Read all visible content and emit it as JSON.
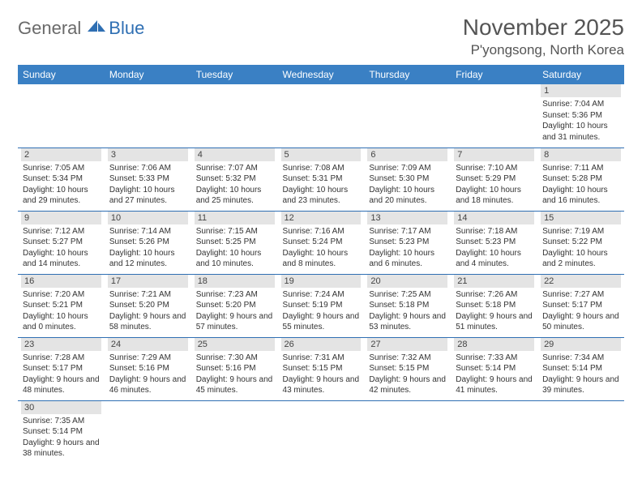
{
  "logo": {
    "general": "General",
    "blue": "Blue"
  },
  "title": "November 2025",
  "location": "P'yongsong, North Korea",
  "colors": {
    "header_bg": "#3a80c4",
    "header_text": "#ffffff",
    "row_divider": "#2f6fb3",
    "daynum_bg": "#e4e4e4",
    "logo_gray": "#6a6a6a",
    "logo_blue": "#2f6fb3",
    "page_bg": "#ffffff"
  },
  "weekdays": [
    "Sunday",
    "Monday",
    "Tuesday",
    "Wednesday",
    "Thursday",
    "Friday",
    "Saturday"
  ],
  "weeks": [
    [
      null,
      null,
      null,
      null,
      null,
      null,
      {
        "n": "1",
        "sr": "Sunrise: 7:04 AM",
        "ss": "Sunset: 5:36 PM",
        "dl": "Daylight: 10 hours and 31 minutes."
      }
    ],
    [
      {
        "n": "2",
        "sr": "Sunrise: 7:05 AM",
        "ss": "Sunset: 5:34 PM",
        "dl": "Daylight: 10 hours and 29 minutes."
      },
      {
        "n": "3",
        "sr": "Sunrise: 7:06 AM",
        "ss": "Sunset: 5:33 PM",
        "dl": "Daylight: 10 hours and 27 minutes."
      },
      {
        "n": "4",
        "sr": "Sunrise: 7:07 AM",
        "ss": "Sunset: 5:32 PM",
        "dl": "Daylight: 10 hours and 25 minutes."
      },
      {
        "n": "5",
        "sr": "Sunrise: 7:08 AM",
        "ss": "Sunset: 5:31 PM",
        "dl": "Daylight: 10 hours and 23 minutes."
      },
      {
        "n": "6",
        "sr": "Sunrise: 7:09 AM",
        "ss": "Sunset: 5:30 PM",
        "dl": "Daylight: 10 hours and 20 minutes."
      },
      {
        "n": "7",
        "sr": "Sunrise: 7:10 AM",
        "ss": "Sunset: 5:29 PM",
        "dl": "Daylight: 10 hours and 18 minutes."
      },
      {
        "n": "8",
        "sr": "Sunrise: 7:11 AM",
        "ss": "Sunset: 5:28 PM",
        "dl": "Daylight: 10 hours and 16 minutes."
      }
    ],
    [
      {
        "n": "9",
        "sr": "Sunrise: 7:12 AM",
        "ss": "Sunset: 5:27 PM",
        "dl": "Daylight: 10 hours and 14 minutes."
      },
      {
        "n": "10",
        "sr": "Sunrise: 7:14 AM",
        "ss": "Sunset: 5:26 PM",
        "dl": "Daylight: 10 hours and 12 minutes."
      },
      {
        "n": "11",
        "sr": "Sunrise: 7:15 AM",
        "ss": "Sunset: 5:25 PM",
        "dl": "Daylight: 10 hours and 10 minutes."
      },
      {
        "n": "12",
        "sr": "Sunrise: 7:16 AM",
        "ss": "Sunset: 5:24 PM",
        "dl": "Daylight: 10 hours and 8 minutes."
      },
      {
        "n": "13",
        "sr": "Sunrise: 7:17 AM",
        "ss": "Sunset: 5:23 PM",
        "dl": "Daylight: 10 hours and 6 minutes."
      },
      {
        "n": "14",
        "sr": "Sunrise: 7:18 AM",
        "ss": "Sunset: 5:23 PM",
        "dl": "Daylight: 10 hours and 4 minutes."
      },
      {
        "n": "15",
        "sr": "Sunrise: 7:19 AM",
        "ss": "Sunset: 5:22 PM",
        "dl": "Daylight: 10 hours and 2 minutes."
      }
    ],
    [
      {
        "n": "16",
        "sr": "Sunrise: 7:20 AM",
        "ss": "Sunset: 5:21 PM",
        "dl": "Daylight: 10 hours and 0 minutes."
      },
      {
        "n": "17",
        "sr": "Sunrise: 7:21 AM",
        "ss": "Sunset: 5:20 PM",
        "dl": "Daylight: 9 hours and 58 minutes."
      },
      {
        "n": "18",
        "sr": "Sunrise: 7:23 AM",
        "ss": "Sunset: 5:20 PM",
        "dl": "Daylight: 9 hours and 57 minutes."
      },
      {
        "n": "19",
        "sr": "Sunrise: 7:24 AM",
        "ss": "Sunset: 5:19 PM",
        "dl": "Daylight: 9 hours and 55 minutes."
      },
      {
        "n": "20",
        "sr": "Sunrise: 7:25 AM",
        "ss": "Sunset: 5:18 PM",
        "dl": "Daylight: 9 hours and 53 minutes."
      },
      {
        "n": "21",
        "sr": "Sunrise: 7:26 AM",
        "ss": "Sunset: 5:18 PM",
        "dl": "Daylight: 9 hours and 51 minutes."
      },
      {
        "n": "22",
        "sr": "Sunrise: 7:27 AM",
        "ss": "Sunset: 5:17 PM",
        "dl": "Daylight: 9 hours and 50 minutes."
      }
    ],
    [
      {
        "n": "23",
        "sr": "Sunrise: 7:28 AM",
        "ss": "Sunset: 5:17 PM",
        "dl": "Daylight: 9 hours and 48 minutes."
      },
      {
        "n": "24",
        "sr": "Sunrise: 7:29 AM",
        "ss": "Sunset: 5:16 PM",
        "dl": "Daylight: 9 hours and 46 minutes."
      },
      {
        "n": "25",
        "sr": "Sunrise: 7:30 AM",
        "ss": "Sunset: 5:16 PM",
        "dl": "Daylight: 9 hours and 45 minutes."
      },
      {
        "n": "26",
        "sr": "Sunrise: 7:31 AM",
        "ss": "Sunset: 5:15 PM",
        "dl": "Daylight: 9 hours and 43 minutes."
      },
      {
        "n": "27",
        "sr": "Sunrise: 7:32 AM",
        "ss": "Sunset: 5:15 PM",
        "dl": "Daylight: 9 hours and 42 minutes."
      },
      {
        "n": "28",
        "sr": "Sunrise: 7:33 AM",
        "ss": "Sunset: 5:14 PM",
        "dl": "Daylight: 9 hours and 41 minutes."
      },
      {
        "n": "29",
        "sr": "Sunrise: 7:34 AM",
        "ss": "Sunset: 5:14 PM",
        "dl": "Daylight: 9 hours and 39 minutes."
      }
    ],
    [
      {
        "n": "30",
        "sr": "Sunrise: 7:35 AM",
        "ss": "Sunset: 5:14 PM",
        "dl": "Daylight: 9 hours and 38 minutes."
      },
      null,
      null,
      null,
      null,
      null,
      null
    ]
  ]
}
